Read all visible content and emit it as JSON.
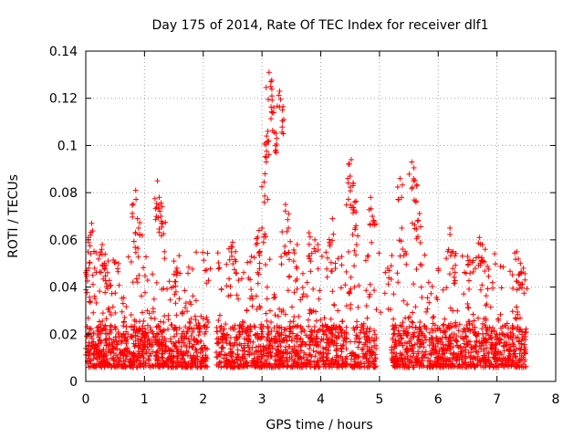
{
  "chart_data": {
    "type": "scatter",
    "title": "Day 175 of 2014, Rate Of TEC Index for receiver dlf1",
    "xlabel": "GPS time / hours",
    "ylabel": "ROTI / TECUs",
    "xlim": [
      0,
      8
    ],
    "ylim": [
      0,
      0.14
    ],
    "x_ticks": [
      "0",
      "1",
      "2",
      "3",
      "4",
      "5",
      "6",
      "7",
      "8"
    ],
    "y_ticks": [
      "0",
      "0.02",
      "0.04",
      "0.06",
      "0.08",
      "0.1",
      "0.12",
      "0.14"
    ],
    "grid": true,
    "marker": "+",
    "color": "#ff0000",
    "series": [
      {
        "name": "ROTI",
        "note": "dense band of points between about 0.005 and 0.025 TECU across 0-7.5 h; sampled peak points listed",
        "x": [
          0.05,
          0.08,
          0.1,
          0.12,
          0.28,
          0.33,
          0.38,
          0.85,
          0.88,
          0.9,
          1.22,
          1.25,
          1.28,
          1.3,
          1.5,
          1.55,
          2.5,
          2.55,
          2.9,
          2.95,
          3.0,
          3.05,
          3.08,
          3.1,
          3.12,
          3.15,
          3.2,
          3.25,
          3.3,
          3.35,
          3.4,
          3.45,
          3.6,
          3.8,
          3.9,
          4.15,
          4.2,
          4.5,
          4.52,
          4.55,
          4.58,
          4.6,
          4.85,
          4.88,
          5.2,
          5.35,
          5.38,
          5.55,
          5.58,
          5.62,
          5.65,
          6.2,
          6.25,
          6.5,
          6.7,
          6.75,
          6.8,
          7.4,
          7.45
        ],
        "y": [
          0.048,
          0.062,
          0.067,
          0.045,
          0.058,
          0.054,
          0.051,
          0.081,
          0.069,
          0.065,
          0.085,
          0.078,
          0.07,
          0.074,
          0.051,
          0.045,
          0.059,
          0.055,
          0.058,
          0.064,
          0.065,
          0.088,
          0.104,
          0.106,
          0.131,
          0.125,
          0.116,
          0.103,
          0.123,
          0.115,
          0.075,
          0.065,
          0.058,
          0.063,
          0.06,
          0.059,
          0.069,
          0.087,
          0.094,
          0.083,
          0.076,
          0.066,
          0.078,
          0.07,
          0.049,
          0.086,
          0.065,
          0.093,
          0.085,
          0.076,
          0.068,
          0.065,
          0.055,
          0.053,
          0.061,
          0.058,
          0.056,
          0.05,
          0.048
        ]
      }
    ]
  }
}
